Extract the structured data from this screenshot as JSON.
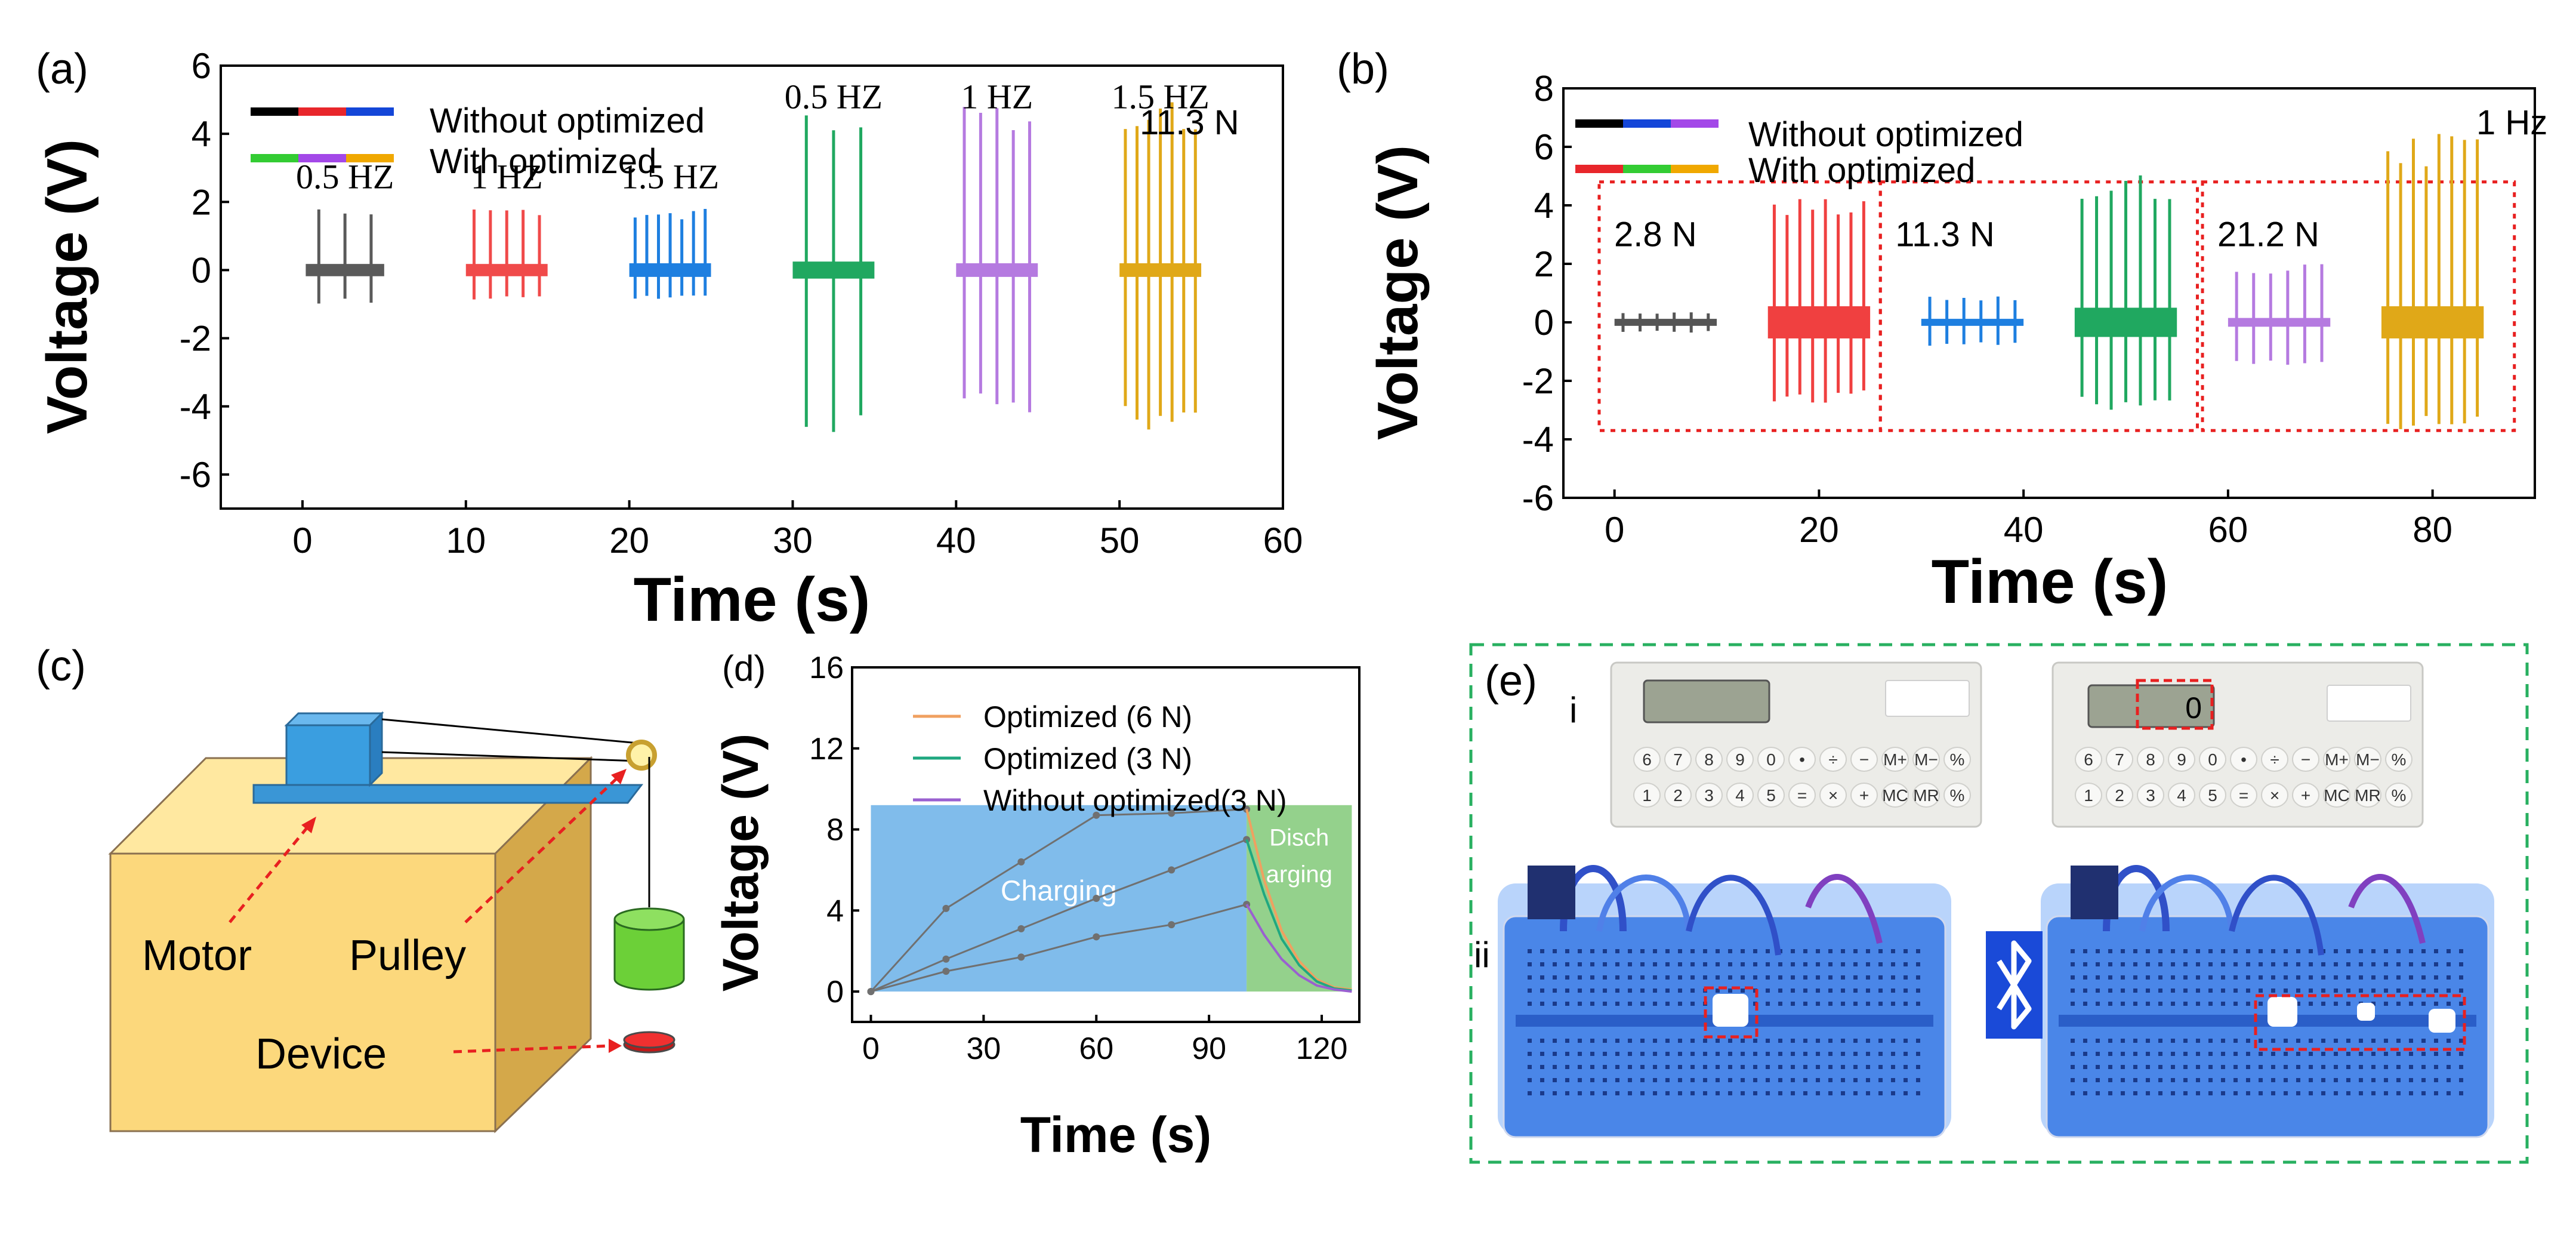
{
  "chart_data": [
    {
      "id": "a",
      "panel_label": "(a)",
      "type": "line",
      "ylabel": "Voltage (V)",
      "xlabel": "Time (s)",
      "xlim": [
        -5,
        60
      ],
      "ylim": [
        -7,
        6
      ],
      "xticks": [
        0,
        10,
        20,
        30,
        40,
        50,
        60
      ],
      "yticks": [
        -6,
        -4,
        -2,
        0,
        2,
        4,
        6
      ],
      "legend": {
        "without_label": "Without optimized",
        "with_label": "With optimized",
        "without_colors": [
          "#000000",
          "#e8262b",
          "#1446d8"
        ],
        "with_colors": [
          "#33cc33",
          "#a348e8",
          "#f0a800"
        ]
      },
      "force_label": "11.3 N",
      "series": [
        {
          "name": "0.5 HZ",
          "group": "without",
          "color": "#5a5a5a",
          "x_start": 0.2,
          "x_end": 5,
          "pulses": 3,
          "noise": 0.18,
          "peak_max": 1.9,
          "peak_min": -1.0,
          "label": "0.5 HZ"
        },
        {
          "name": "1 HZ",
          "group": "without",
          "color": "#f04a4a",
          "x_start": 10,
          "x_end": 15,
          "pulses": 5,
          "noise": 0.18,
          "peak_max": 1.8,
          "peak_min": -0.9,
          "label": "1 HZ"
        },
        {
          "name": "1.5 HZ",
          "group": "without",
          "color": "#1e7fe0",
          "x_start": 20,
          "x_end": 25,
          "pulses": 7,
          "noise": 0.2,
          "peak_max": 1.8,
          "peak_min": -0.9,
          "label": "1.5 HZ"
        },
        {
          "name": "0.5 HZ",
          "group": "with",
          "color": "#20a860",
          "x_start": 30,
          "x_end": 35,
          "pulses": 3,
          "noise": 0.25,
          "peak_max": 5.0,
          "peak_min": -5.1,
          "label": "0.5 HZ"
        },
        {
          "name": "1 HZ",
          "group": "with",
          "color": "#b57ae0",
          "x_start": 40,
          "x_end": 45,
          "pulses": 5,
          "noise": 0.2,
          "peak_max": 5.0,
          "peak_min": -4.3,
          "label": "1 HZ"
        },
        {
          "name": "1.5 HZ",
          "group": "with",
          "color": "#e0a818",
          "x_start": 50,
          "x_end": 55,
          "pulses": 7,
          "noise": 0.2,
          "peak_max": 5.0,
          "peak_min": -4.7,
          "label": "1.5 HZ"
        }
      ]
    },
    {
      "id": "b",
      "panel_label": "(b)",
      "type": "line",
      "ylabel": "Voltage (V)",
      "xlabel": "Time (s)",
      "xlim": [
        -5,
        90
      ],
      "ylim": [
        -6,
        8
      ],
      "xticks": [
        0,
        20,
        40,
        60,
        80
      ],
      "yticks": [
        -6,
        -4,
        -2,
        0,
        2,
        4,
        6,
        8
      ],
      "legend": {
        "without_label": "Without optimized",
        "with_label": "With optimized",
        "without_colors": [
          "#000000",
          "#1446d8",
          "#a348e8"
        ],
        "with_colors": [
          "#e8262b",
          "#33cc33",
          "#f0a800"
        ]
      },
      "frequency_label": "1 Hz",
      "groups": [
        {
          "force": "2.8 N",
          "x0": -1.5,
          "x1": 26
        },
        {
          "force": "11.3 N",
          "x0": 26,
          "x1": 57
        },
        {
          "force": "21.2 N",
          "x0": 57.5,
          "x1": 88
        }
      ],
      "series": [
        {
          "name": "2.8 N without",
          "color": "#555555",
          "x_start": 0,
          "x_end": 10,
          "pulses": 6,
          "noise": 0.12,
          "peak_max": 0.35,
          "peak_min": -0.35
        },
        {
          "name": "2.8 N with",
          "color": "#f04040",
          "x_start": 15,
          "x_end": 25,
          "pulses": 8,
          "noise": 0.55,
          "peak_max": 4.3,
          "peak_min": -2.8
        },
        {
          "name": "11.3 N without",
          "color": "#1e7fe0",
          "x_start": 30,
          "x_end": 40,
          "pulses": 6,
          "noise": 0.12,
          "peak_max": 0.9,
          "peak_min": -0.8
        },
        {
          "name": "11.3 N with",
          "color": "#20a860",
          "x_start": 45,
          "x_end": 55,
          "pulses": 7,
          "noise": 0.5,
          "peak_max": 5.1,
          "peak_min": -3.0
        },
        {
          "name": "21.2 N without",
          "color": "#b57ae0",
          "x_start": 60,
          "x_end": 70,
          "pulses": 6,
          "noise": 0.15,
          "peak_max": 2.0,
          "peak_min": -1.5
        },
        {
          "name": "21.2 N with",
          "color": "#e0a818",
          "x_start": 75,
          "x_end": 85,
          "pulses": 8,
          "noise": 0.55,
          "peak_max": 6.5,
          "peak_min": -3.8
        }
      ]
    },
    {
      "id": "d",
      "panel_label": "(d)",
      "type": "line",
      "ylabel": "Voltage (V)",
      "xlabel": "Time (s)",
      "xlim": [
        -5,
        130
      ],
      "ylim": [
        -1.5,
        16
      ],
      "xticks": [
        0,
        30,
        60,
        90,
        120
      ],
      "yticks": [
        0,
        4,
        8,
        12,
        16
      ],
      "charging_label": "Charging",
      "discharging_label_1": "Disch",
      "discharging_label_2": "arging",
      "charge_end": 100,
      "discharge_end": 128,
      "shade_top": 9.2,
      "series": [
        {
          "name": "Optimized (6 N)",
          "color": "#f0a060",
          "x": [
            0,
            20,
            40,
            60,
            80,
            100
          ],
          "y": [
            0,
            4.1,
            6.4,
            8.7,
            8.8,
            9.0
          ],
          "discharge": [
            9.0,
            5.5,
            3.0,
            1.5,
            0.6,
            0.2,
            0.1
          ]
        },
        {
          "name": "Optimized (3 N)",
          "color": "#20a880",
          "x": [
            0,
            20,
            40,
            60,
            80,
            100
          ],
          "y": [
            0,
            1.6,
            3.1,
            4.6,
            6.0,
            7.5
          ],
          "discharge": [
            7.5,
            4.8,
            2.6,
            1.3,
            0.5,
            0.15,
            0.05
          ]
        },
        {
          "name": "Without optimized(3 N)",
          "color": "#9a60d0",
          "x": [
            0,
            20,
            40,
            60,
            80,
            100
          ],
          "y": [
            0,
            1.0,
            1.7,
            2.7,
            3.3,
            4.3
          ],
          "discharge": [
            4.3,
            2.8,
            1.6,
            0.8,
            0.3,
            0.1,
            0.0
          ]
        }
      ]
    }
  ],
  "panel_c": {
    "panel_label": "(c)",
    "motor_label": "Motor",
    "pulley_label": "Pulley",
    "device_label": "Device"
  },
  "panel_e": {
    "panel_label": "(e)",
    "row_i_label": "i",
    "row_ii_label": "ii",
    "display_value": "0",
    "keys_row1": [
      "6",
      "7",
      "8",
      "9",
      "0",
      "•",
      "÷",
      "−",
      "M+",
      "M−",
      "%"
    ],
    "keys_row2": [
      "1",
      "2",
      "3",
      "4",
      "5",
      "=",
      "×",
      "+",
      "MC",
      "MR",
      "%"
    ]
  }
}
